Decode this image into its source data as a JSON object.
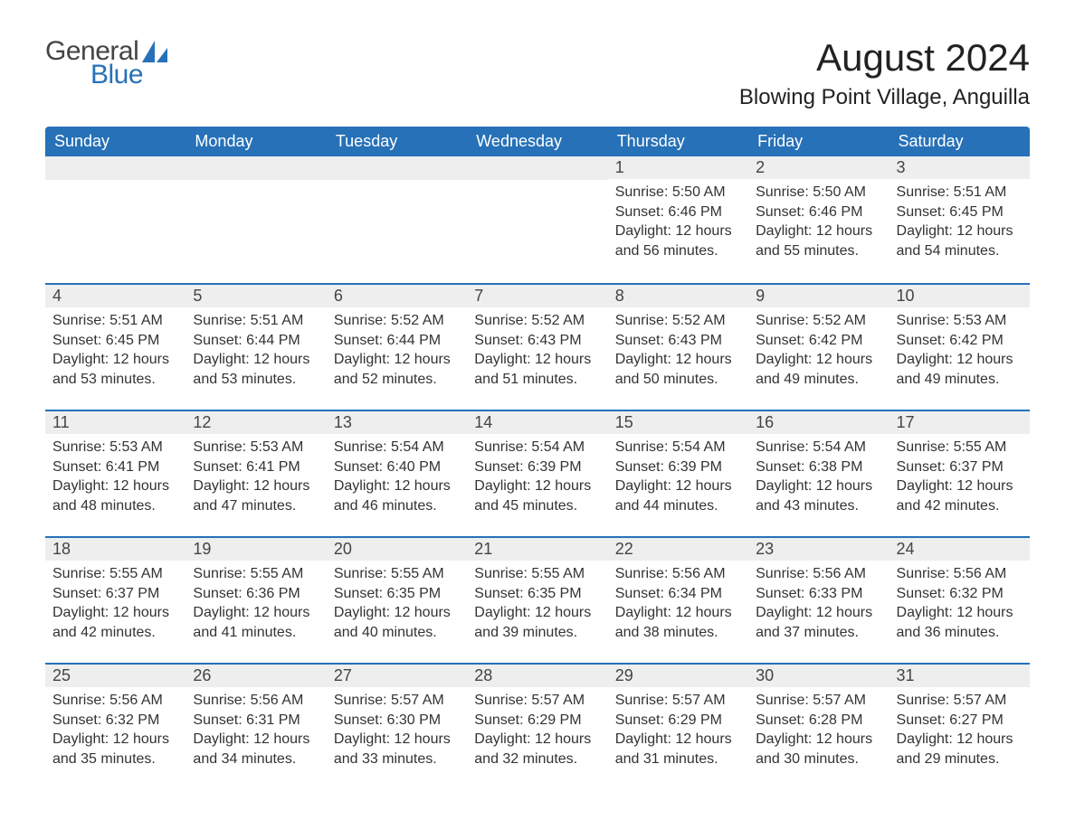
{
  "logo": {
    "general": "General",
    "blue": "Blue"
  },
  "colors": {
    "brand_blue": "#2671b8",
    "header_bg": "#2671b8",
    "header_text": "#ffffff",
    "daynum_bg": "#eeeeee",
    "divider": "#2671b8",
    "text": "#333333",
    "title_text": "#222222",
    "background": "#ffffff"
  },
  "title": "August 2024",
  "location": "Blowing Point Village, Anguilla",
  "weekdays": [
    "Sunday",
    "Monday",
    "Tuesday",
    "Wednesday",
    "Thursday",
    "Friday",
    "Saturday"
  ],
  "calendar": {
    "type": "table",
    "first_weekday_index": 4,
    "weeks": [
      [
        null,
        null,
        null,
        null,
        {
          "n": "1",
          "sr": "5:50 AM",
          "ss": "6:46 PM",
          "d1": "12 hours",
          "d2": "and 56 minutes."
        },
        {
          "n": "2",
          "sr": "5:50 AM",
          "ss": "6:46 PM",
          "d1": "12 hours",
          "d2": "and 55 minutes."
        },
        {
          "n": "3",
          "sr": "5:51 AM",
          "ss": "6:45 PM",
          "d1": "12 hours",
          "d2": "and 54 minutes."
        }
      ],
      [
        {
          "n": "4",
          "sr": "5:51 AM",
          "ss": "6:45 PM",
          "d1": "12 hours",
          "d2": "and 53 minutes."
        },
        {
          "n": "5",
          "sr": "5:51 AM",
          "ss": "6:44 PM",
          "d1": "12 hours",
          "d2": "and 53 minutes."
        },
        {
          "n": "6",
          "sr": "5:52 AM",
          "ss": "6:44 PM",
          "d1": "12 hours",
          "d2": "and 52 minutes."
        },
        {
          "n": "7",
          "sr": "5:52 AM",
          "ss": "6:43 PM",
          "d1": "12 hours",
          "d2": "and 51 minutes."
        },
        {
          "n": "8",
          "sr": "5:52 AM",
          "ss": "6:43 PM",
          "d1": "12 hours",
          "d2": "and 50 minutes."
        },
        {
          "n": "9",
          "sr": "5:52 AM",
          "ss": "6:42 PM",
          "d1": "12 hours",
          "d2": "and 49 minutes."
        },
        {
          "n": "10",
          "sr": "5:53 AM",
          "ss": "6:42 PM",
          "d1": "12 hours",
          "d2": "and 49 minutes."
        }
      ],
      [
        {
          "n": "11",
          "sr": "5:53 AM",
          "ss": "6:41 PM",
          "d1": "12 hours",
          "d2": "and 48 minutes."
        },
        {
          "n": "12",
          "sr": "5:53 AM",
          "ss": "6:41 PM",
          "d1": "12 hours",
          "d2": "and 47 minutes."
        },
        {
          "n": "13",
          "sr": "5:54 AM",
          "ss": "6:40 PM",
          "d1": "12 hours",
          "d2": "and 46 minutes."
        },
        {
          "n": "14",
          "sr": "5:54 AM",
          "ss": "6:39 PM",
          "d1": "12 hours",
          "d2": "and 45 minutes."
        },
        {
          "n": "15",
          "sr": "5:54 AM",
          "ss": "6:39 PM",
          "d1": "12 hours",
          "d2": "and 44 minutes."
        },
        {
          "n": "16",
          "sr": "5:54 AM",
          "ss": "6:38 PM",
          "d1": "12 hours",
          "d2": "and 43 minutes."
        },
        {
          "n": "17",
          "sr": "5:55 AM",
          "ss": "6:37 PM",
          "d1": "12 hours",
          "d2": "and 42 minutes."
        }
      ],
      [
        {
          "n": "18",
          "sr": "5:55 AM",
          "ss": "6:37 PM",
          "d1": "12 hours",
          "d2": "and 42 minutes."
        },
        {
          "n": "19",
          "sr": "5:55 AM",
          "ss": "6:36 PM",
          "d1": "12 hours",
          "d2": "and 41 minutes."
        },
        {
          "n": "20",
          "sr": "5:55 AM",
          "ss": "6:35 PM",
          "d1": "12 hours",
          "d2": "and 40 minutes."
        },
        {
          "n": "21",
          "sr": "5:55 AM",
          "ss": "6:35 PM",
          "d1": "12 hours",
          "d2": "and 39 minutes."
        },
        {
          "n": "22",
          "sr": "5:56 AM",
          "ss": "6:34 PM",
          "d1": "12 hours",
          "d2": "and 38 minutes."
        },
        {
          "n": "23",
          "sr": "5:56 AM",
          "ss": "6:33 PM",
          "d1": "12 hours",
          "d2": "and 37 minutes."
        },
        {
          "n": "24",
          "sr": "5:56 AM",
          "ss": "6:32 PM",
          "d1": "12 hours",
          "d2": "and 36 minutes."
        }
      ],
      [
        {
          "n": "25",
          "sr": "5:56 AM",
          "ss": "6:32 PM",
          "d1": "12 hours",
          "d2": "and 35 minutes."
        },
        {
          "n": "26",
          "sr": "5:56 AM",
          "ss": "6:31 PM",
          "d1": "12 hours",
          "d2": "and 34 minutes."
        },
        {
          "n": "27",
          "sr": "5:57 AM",
          "ss": "6:30 PM",
          "d1": "12 hours",
          "d2": "and 33 minutes."
        },
        {
          "n": "28",
          "sr": "5:57 AM",
          "ss": "6:29 PM",
          "d1": "12 hours",
          "d2": "and 32 minutes."
        },
        {
          "n": "29",
          "sr": "5:57 AM",
          "ss": "6:29 PM",
          "d1": "12 hours",
          "d2": "and 31 minutes."
        },
        {
          "n": "30",
          "sr": "5:57 AM",
          "ss": "6:28 PM",
          "d1": "12 hours",
          "d2": "and 30 minutes."
        },
        {
          "n": "31",
          "sr": "5:57 AM",
          "ss": "6:27 PM",
          "d1": "12 hours",
          "d2": "and 29 minutes."
        }
      ]
    ]
  },
  "labels": {
    "sunrise_prefix": "Sunrise: ",
    "sunset_prefix": "Sunset: ",
    "daylight_prefix": "Daylight: "
  }
}
